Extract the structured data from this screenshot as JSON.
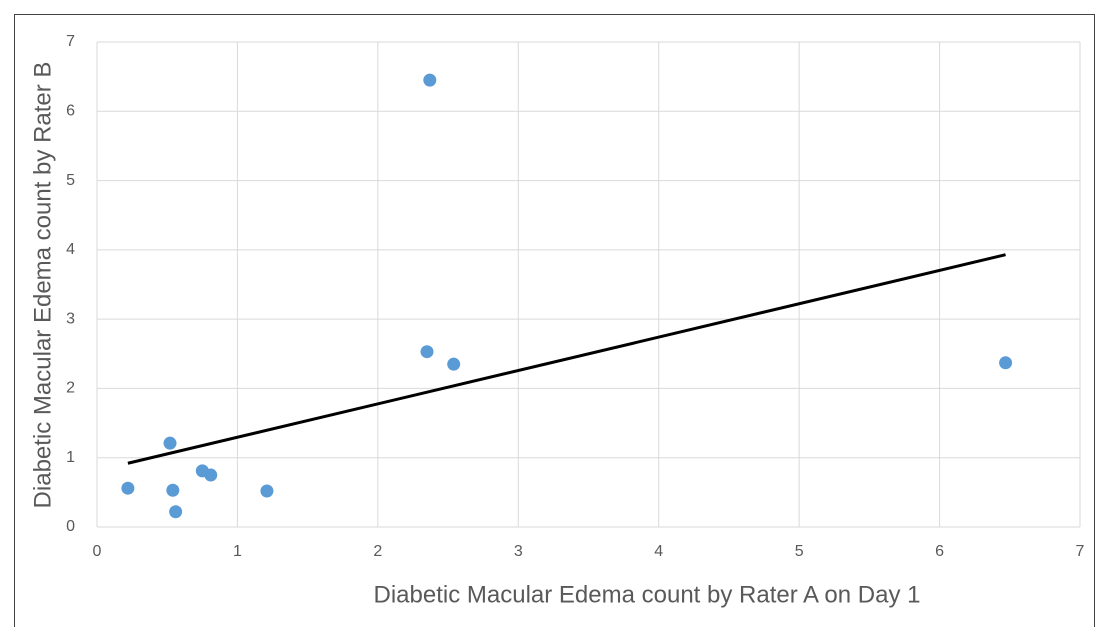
{
  "chart_data": {
    "type": "scatter",
    "xlabel": "Diabetic Macular Edema count by Rater A on Day 1",
    "ylabel": "Diabetic Macular Edema count by Rater B",
    "x": [
      0.22,
      0.52,
      0.54,
      0.56,
      0.75,
      0.81,
      1.21,
      2.35,
      2.54,
      2.37,
      6.47
    ],
    "values": [
      0.56,
      1.21,
      0.53,
      0.22,
      0.81,
      0.75,
      0.52,
      2.53,
      2.35,
      6.45,
      2.37
    ],
    "color": "#5b9bd5",
    "trendline": {
      "x": [
        0.22,
        6.47
      ],
      "y": [
        0.92,
        3.93
      ],
      "color": "#000000"
    },
    "xlim": [
      0,
      7
    ],
    "ylim": [
      0,
      7
    ],
    "xticks": [
      0,
      1,
      2,
      3,
      4,
      5,
      6,
      7
    ],
    "yticks": [
      0,
      1,
      2,
      3,
      4,
      5,
      6,
      7
    ],
    "grid": true
  }
}
